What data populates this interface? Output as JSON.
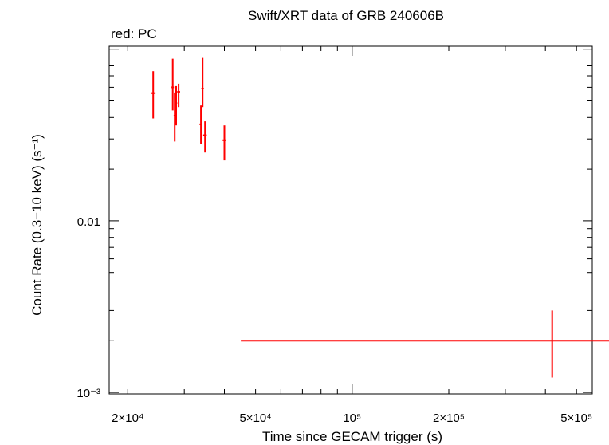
{
  "chart_data": {
    "type": "scatter",
    "title": "Swift/XRT data of GRB 240606B",
    "subtitle": "red: PC",
    "xlabel": "Time since GECAM trigger (s)",
    "ylabel": "Count Rate (0.3−10 keV) (s⁻¹)",
    "xscale": "log",
    "yscale": "log",
    "xlim": [
      17500,
      560000
    ],
    "ylim": [
      0.00098,
      0.104
    ],
    "grid": false,
    "x_ticks": [
      {
        "value": 20000,
        "label": "2×10⁴"
      },
      {
        "value": 50000,
        "label": "5×10⁴"
      },
      {
        "value": 100000,
        "label": "10⁵"
      },
      {
        "value": 200000,
        "label": "2×10⁵"
      },
      {
        "value": 500000,
        "label": "5×10⁵"
      }
    ],
    "y_ticks": [
      {
        "value": 0.01,
        "label": "0.01"
      },
      {
        "value": 0.001,
        "label": "10⁻³"
      }
    ],
    "series": [
      {
        "name": "PC",
        "color": "#ff0000",
        "points": [
          {
            "x": 24000,
            "y": 0.0555,
            "xerr": [
              400,
              400
            ],
            "yerr": [
              0.0395,
              0.0745
            ]
          },
          {
            "x": 27600,
            "y": 0.06,
            "xerr": [
              250,
              250
            ],
            "yerr": [
              0.044,
              0.088
            ]
          },
          {
            "x": 28000,
            "y": 0.041,
            "xerr": [
              200,
              200
            ],
            "yerr": [
              0.029,
              0.056
            ]
          },
          {
            "x": 28300,
            "y": 0.0485,
            "xerr": [
              200,
              200
            ],
            "yerr": [
              0.036,
              0.061
            ]
          },
          {
            "x": 28800,
            "y": 0.0565,
            "xerr": [
              300,
              300
            ],
            "yerr": [
              0.046,
              0.063
            ]
          },
          {
            "x": 33800,
            "y": 0.0365,
            "xerr": [
              350,
              350
            ],
            "yerr": [
              0.028,
              0.047
            ]
          },
          {
            "x": 34200,
            "y": 0.059,
            "xerr": [
              300,
              300
            ],
            "yerr": [
              0.046,
              0.089
            ]
          },
          {
            "x": 34800,
            "y": 0.0315,
            "xerr": [
              450,
              450
            ],
            "yerr": [
              0.025,
              0.038
            ]
          },
          {
            "x": 40000,
            "y": 0.0295,
            "xerr": [
              500,
              500
            ],
            "yerr": [
              0.0225,
              0.036
            ]
          },
          {
            "x": 420000,
            "y": 0.002,
            "xerr": [
              375000,
              480000
            ],
            "yerr": [
              0.00122,
              0.003
            ]
          }
        ]
      }
    ]
  }
}
